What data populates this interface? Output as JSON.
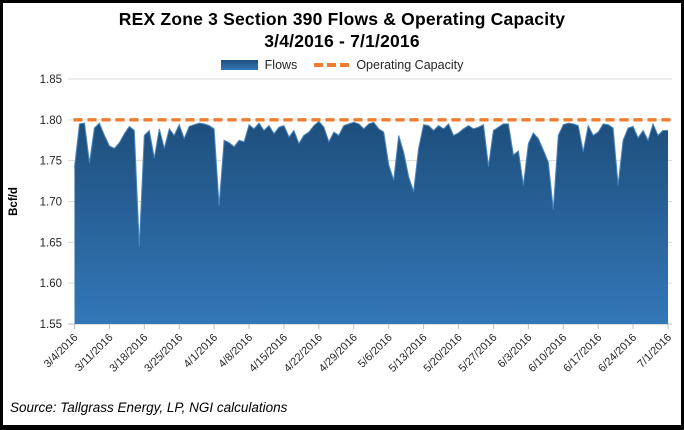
{
  "title": {
    "line1": "REX Zone 3 Section 390 Flows & Operating Capacity",
    "line2": "3/4/2016 - 7/1/2016"
  },
  "legend": {
    "flows_label": "Flows",
    "capacity_label": "Operating Capacity"
  },
  "source_note": "Source: Tallgrass Energy, LP, NGI calculations",
  "colors": {
    "flows_top": "#1E4F7D",
    "flows_bottom": "#3377B8",
    "flows_edge": "#4C86BC",
    "capacity": "#ED7D31",
    "grid": "#D9D9D9",
    "axis": "#BFBFBF",
    "tick_text": "#262626"
  },
  "chart_data": {
    "type": "area",
    "title": "REX Zone 3 Section 390 Flows & Operating Capacity",
    "subtitle": "3/4/2016 - 7/1/2016",
    "xlabel": "",
    "ylabel": "Bcf/d",
    "ylim": [
      1.55,
      1.85
    ],
    "ytick_step": 0.05,
    "ytick_labels": [
      "1.55",
      "1.60",
      "1.65",
      "1.70",
      "1.75",
      "1.80",
      "1.85"
    ],
    "xtick_labels": [
      "3/4/2016",
      "3/11/2016",
      "3/18/2016",
      "3/25/2016",
      "4/1/2016",
      "4/8/2016",
      "4/15/2016",
      "4/22/2016",
      "4/29/2016",
      "5/6/2016",
      "5/13/2016",
      "5/20/2016",
      "5/27/2016",
      "6/3/2016",
      "6/10/2016",
      "6/17/2016",
      "6/24/2016",
      "7/1/2016"
    ],
    "grid": "horizontal",
    "legend_position": "top",
    "series": [
      {
        "name": "Flows",
        "type": "area",
        "dates": [
          "3/4/2016",
          "3/5/2016",
          "3/6/2016",
          "3/7/2016",
          "3/8/2016",
          "3/9/2016",
          "3/10/2016",
          "3/11/2016",
          "3/12/2016",
          "3/13/2016",
          "3/14/2016",
          "3/15/2016",
          "3/16/2016",
          "3/17/2016",
          "3/18/2016",
          "3/19/2016",
          "3/20/2016",
          "3/21/2016",
          "3/22/2016",
          "3/23/2016",
          "3/24/2016",
          "3/25/2016",
          "3/26/2016",
          "3/27/2016",
          "3/28/2016",
          "3/29/2016",
          "3/30/2016",
          "3/31/2016",
          "4/1/2016",
          "4/2/2016",
          "4/3/2016",
          "4/4/2016",
          "4/5/2016",
          "4/6/2016",
          "4/7/2016",
          "4/8/2016",
          "4/9/2016",
          "4/10/2016",
          "4/11/2016",
          "4/12/2016",
          "4/13/2016",
          "4/14/2016",
          "4/15/2016",
          "4/16/2016",
          "4/17/2016",
          "4/18/2016",
          "4/19/2016",
          "4/20/2016",
          "4/21/2016",
          "4/22/2016",
          "4/23/2016",
          "4/24/2016",
          "4/25/2016",
          "4/26/2016",
          "4/27/2016",
          "4/28/2016",
          "4/29/2016",
          "4/30/2016",
          "5/1/2016",
          "5/2/2016",
          "5/3/2016",
          "5/4/2016",
          "5/5/2016",
          "5/6/2016",
          "5/7/2016",
          "5/8/2016",
          "5/9/2016",
          "5/10/2016",
          "5/11/2016",
          "5/12/2016",
          "5/13/2016",
          "5/14/2016",
          "5/15/2016",
          "5/16/2016",
          "5/17/2016",
          "5/18/2016",
          "5/19/2016",
          "5/20/2016",
          "5/21/2016",
          "5/22/2016",
          "5/23/2016",
          "5/24/2016",
          "5/25/2016",
          "5/26/2016",
          "5/27/2016",
          "5/28/2016",
          "5/29/2016",
          "5/30/2016",
          "5/31/2016",
          "6/1/2016",
          "6/2/2016",
          "6/3/2016",
          "6/4/2016",
          "6/5/2016",
          "6/6/2016",
          "6/7/2016",
          "6/8/2016",
          "6/9/2016",
          "6/10/2016",
          "6/11/2016",
          "6/12/2016",
          "6/13/2016",
          "6/14/2016",
          "6/15/2016",
          "6/16/2016",
          "6/17/2016",
          "6/18/2016",
          "6/19/2016",
          "6/20/2016",
          "6/21/2016",
          "6/22/2016",
          "6/23/2016",
          "6/24/2016",
          "6/25/2016",
          "6/26/2016",
          "6/27/2016",
          "6/28/2016",
          "6/29/2016",
          "6/30/2016",
          "7/1/2016"
        ],
        "values": [
          1.742,
          1.795,
          1.796,
          1.747,
          1.79,
          1.796,
          1.781,
          1.768,
          1.765,
          1.772,
          1.783,
          1.792,
          1.787,
          1.645,
          1.781,
          1.787,
          1.753,
          1.789,
          1.765,
          1.789,
          1.781,
          1.794,
          1.777,
          1.792,
          1.794,
          1.796,
          1.795,
          1.793,
          1.789,
          1.695,
          1.775,
          1.772,
          1.767,
          1.775,
          1.773,
          1.794,
          1.789,
          1.796,
          1.787,
          1.793,
          1.783,
          1.791,
          1.793,
          1.779,
          1.787,
          1.771,
          1.781,
          1.785,
          1.793,
          1.798,
          1.791,
          1.773,
          1.785,
          1.781,
          1.793,
          1.795,
          1.797,
          1.795,
          1.789,
          1.795,
          1.797,
          1.789,
          1.785,
          1.745,
          1.726,
          1.781,
          1.76,
          1.73,
          1.712,
          1.765,
          1.794,
          1.793,
          1.787,
          1.793,
          1.789,
          1.795,
          1.781,
          1.784,
          1.789,
          1.793,
          1.789,
          1.791,
          1.794,
          1.743,
          1.787,
          1.791,
          1.795,
          1.795,
          1.757,
          1.762,
          1.72,
          1.771,
          1.784,
          1.777,
          1.763,
          1.748,
          1.69,
          1.781,
          1.794,
          1.796,
          1.795,
          1.793,
          1.761,
          1.793,
          1.781,
          1.785,
          1.795,
          1.794,
          1.79,
          1.72,
          1.775,
          1.79,
          1.792,
          1.778,
          1.787,
          1.775,
          1.795,
          1.781,
          1.787,
          1.787
        ]
      },
      {
        "name": "Operating Capacity",
        "type": "dashed-line",
        "value": 1.8
      }
    ]
  }
}
